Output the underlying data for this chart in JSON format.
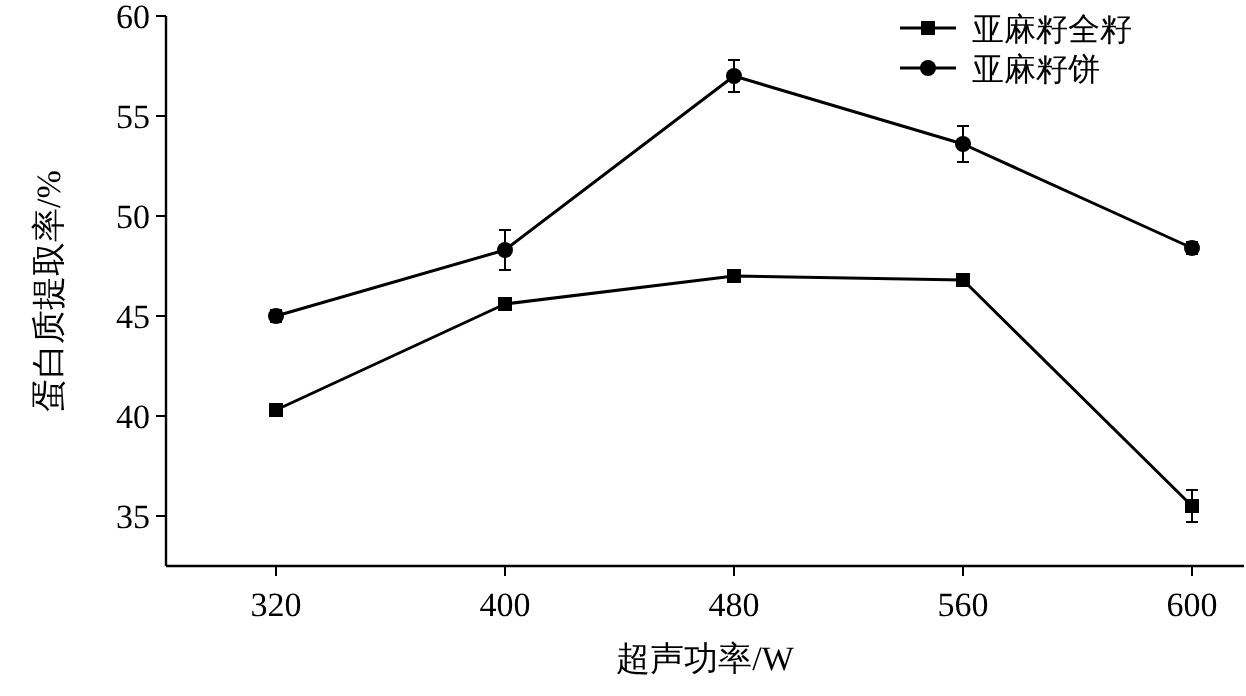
{
  "chart_data": {
    "type": "line",
    "xlabel": "超声功率/W",
    "ylabel": "蛋白质提取率/%",
    "categories": [
      "320",
      "400",
      "480",
      "560",
      "600"
    ],
    "series": [
      {
        "name": "亚麻籽全籽",
        "color": "#000000",
        "marker": "square",
        "values": [
          40.3,
          45.6,
          47.0,
          46.8,
          35.5
        ],
        "errors": [
          null,
          null,
          null,
          null,
          0.8
        ]
      },
      {
        "name": "亚麻籽饼",
        "color": "#000000",
        "marker": "circle",
        "values": [
          45.0,
          48.3,
          57.0,
          53.6,
          48.4
        ],
        "errors": [
          0.3,
          1.0,
          0.8,
          0.9,
          0.3
        ]
      }
    ],
    "ylim": [
      32.5,
      60
    ],
    "yticks": [
      35,
      40,
      45,
      50,
      55,
      60
    ],
    "grid": false,
    "legend": "top right"
  }
}
